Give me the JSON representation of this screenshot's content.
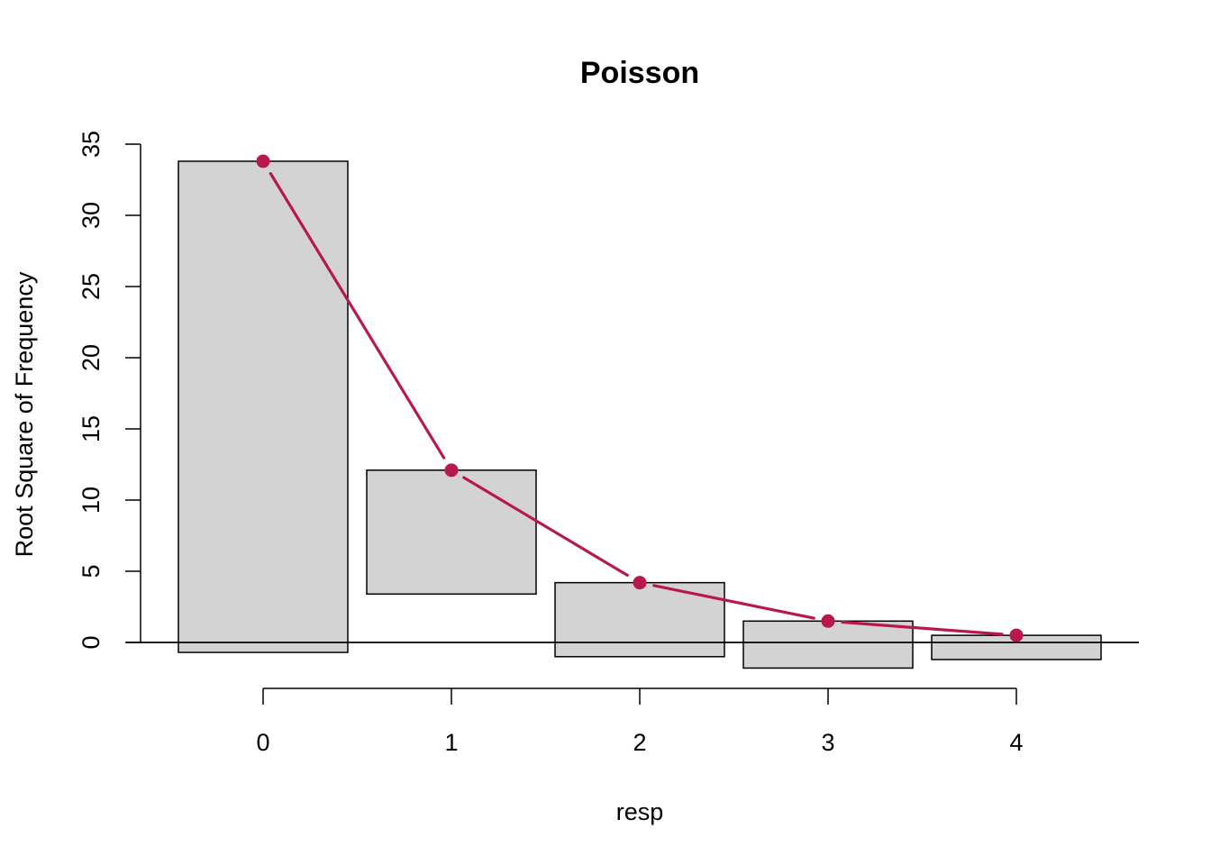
{
  "chart_data": {
    "type": "bar",
    "subtype": "hanging rootogram",
    "title": "Poisson",
    "xlabel": "resp",
    "ylabel": "Root Square of Frequency",
    "categories": [
      "0",
      "1",
      "2",
      "3",
      "4"
    ],
    "x": [
      0,
      1,
      2,
      3,
      4
    ],
    "ylim": [
      -2,
      35
    ],
    "yticks": [
      0,
      5,
      10,
      15,
      20,
      25,
      30,
      35
    ],
    "xticks": [
      "0",
      "1",
      "2",
      "3",
      "4"
    ],
    "bars": [
      {
        "x": 0,
        "top": 33.8,
        "bottom": -0.7
      },
      {
        "x": 1,
        "top": 12.1,
        "bottom": 3.4
      },
      {
        "x": 2,
        "top": 4.2,
        "bottom": -1.0
      },
      {
        "x": 3,
        "top": 1.5,
        "bottom": -1.8
      },
      {
        "x": 4,
        "top": 0.5,
        "bottom": -1.2
      }
    ],
    "expected": [
      33.8,
      12.1,
      4.2,
      1.5,
      0.5
    ],
    "reference_line": 0,
    "grid": false,
    "legend": "none",
    "colors": {
      "bar_fill": "#d3d3d3",
      "bar_stroke": "#000000",
      "curve": "#b8184f"
    }
  }
}
